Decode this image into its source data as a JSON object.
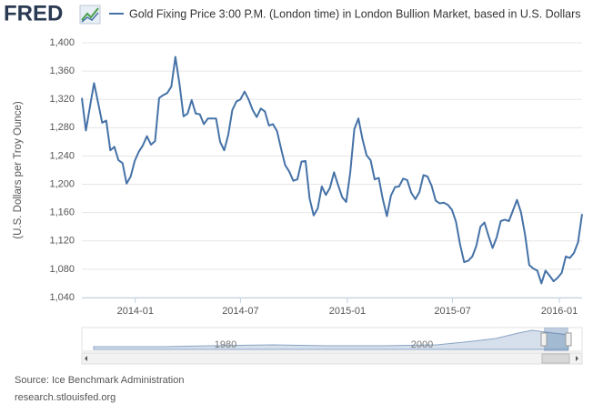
{
  "logo": "FRED",
  "chart_data": {
    "type": "line",
    "ylabel": "(U.S. Dollars per Troy Ounce)",
    "x": [
      "2013-10-01",
      "2013-10-08",
      "2013-10-15",
      "2013-10-22",
      "2013-10-29",
      "2013-11-05",
      "2013-11-12",
      "2013-11-19",
      "2013-11-26",
      "2013-12-03",
      "2013-12-10",
      "2013-12-17",
      "2013-12-24",
      "2013-12-31",
      "2014-01-07",
      "2014-01-14",
      "2014-01-21",
      "2014-01-28",
      "2014-02-04",
      "2014-02-11",
      "2014-02-18",
      "2014-02-25",
      "2014-03-04",
      "2014-03-11",
      "2014-03-18",
      "2014-03-25",
      "2014-04-01",
      "2014-04-08",
      "2014-04-15",
      "2014-04-22",
      "2014-04-29",
      "2014-05-06",
      "2014-05-13",
      "2014-05-20",
      "2014-05-27",
      "2014-06-03",
      "2014-06-10",
      "2014-06-17",
      "2014-06-24",
      "2014-07-01",
      "2014-07-08",
      "2014-07-15",
      "2014-07-22",
      "2014-07-29",
      "2014-08-05",
      "2014-08-12",
      "2014-08-19",
      "2014-08-26",
      "2014-09-02",
      "2014-09-09",
      "2014-09-16",
      "2014-09-23",
      "2014-09-30",
      "2014-10-07",
      "2014-10-14",
      "2014-10-21",
      "2014-10-28",
      "2014-11-04",
      "2014-11-11",
      "2014-11-18",
      "2014-11-25",
      "2014-12-02",
      "2014-12-09",
      "2014-12-16",
      "2014-12-23",
      "2014-12-30",
      "2015-01-06",
      "2015-01-13",
      "2015-01-20",
      "2015-01-27",
      "2015-02-03",
      "2015-02-10",
      "2015-02-17",
      "2015-02-24",
      "2015-03-03",
      "2015-03-10",
      "2015-03-17",
      "2015-03-24",
      "2015-03-31",
      "2015-04-07",
      "2015-04-14",
      "2015-04-21",
      "2015-04-28",
      "2015-05-05",
      "2015-05-12",
      "2015-05-19",
      "2015-05-26",
      "2015-06-02",
      "2015-06-09",
      "2015-06-16",
      "2015-06-23",
      "2015-06-30",
      "2015-07-07",
      "2015-07-14",
      "2015-07-21",
      "2015-07-28",
      "2015-08-04",
      "2015-08-11",
      "2015-08-18",
      "2015-08-25",
      "2015-09-01",
      "2015-09-08",
      "2015-09-15",
      "2015-09-22",
      "2015-09-29",
      "2015-10-06",
      "2015-10-13",
      "2015-10-20",
      "2015-10-27",
      "2015-11-03",
      "2015-11-10",
      "2015-11-17",
      "2015-11-24",
      "2015-12-01",
      "2015-12-08",
      "2015-12-15",
      "2015-12-22",
      "2015-12-29",
      "2016-01-05",
      "2016-01-12",
      "2016-01-19",
      "2016-01-26",
      "2016-02-02",
      "2016-02-09"
    ],
    "series": [
      {
        "name": "Gold Fixing Price 3:00 P.M. (London time) in London Bullion Market, based in U.S. Dollars",
        "color": "#4572a7",
        "values": [
          1322,
          1276,
          1310,
          1343,
          1315,
          1287,
          1290,
          1248,
          1253,
          1234,
          1230,
          1201,
          1211,
          1233,
          1246,
          1255,
          1268,
          1256,
          1261,
          1322,
          1326,
          1329,
          1338,
          1380,
          1342,
          1296,
          1300,
          1319,
          1300,
          1299,
          1285,
          1293,
          1293,
          1293,
          1260,
          1248,
          1270,
          1305,
          1317,
          1320,
          1331,
          1320,
          1305,
          1295,
          1307,
          1303,
          1283,
          1285,
          1275,
          1250,
          1227,
          1218,
          1205,
          1207,
          1232,
          1233,
          1180,
          1156,
          1166,
          1197,
          1185,
          1195,
          1217,
          1199,
          1182,
          1175,
          1217,
          1278,
          1293,
          1264,
          1241,
          1234,
          1207,
          1209,
          1179,
          1155,
          1184,
          1196,
          1197,
          1208,
          1206,
          1188,
          1179,
          1189,
          1213,
          1211,
          1198,
          1177,
          1173,
          1174,
          1171,
          1164,
          1147,
          1115,
          1090,
          1092,
          1098,
          1113,
          1140,
          1146,
          1127,
          1110,
          1125,
          1148,
          1150,
          1148,
          1163,
          1178,
          1160,
          1128,
          1086,
          1081,
          1078,
          1060,
          1078,
          1071,
          1063,
          1068,
          1075,
          1098,
          1096,
          1103,
          1118,
          1158
        ]
      }
    ],
    "xlim": [
      "2013-10-01",
      "2016-02-09"
    ],
    "xticks": [
      {
        "value": "2014-01-01",
        "label": "2014-01"
      },
      {
        "value": "2014-07-01",
        "label": "2014-07"
      },
      {
        "value": "2015-01-01",
        "label": "2015-01"
      },
      {
        "value": "2015-07-01",
        "label": "2015-07"
      },
      {
        "value": "2016-01-01",
        "label": "2016-01"
      }
    ],
    "ylim": [
      1040,
      1400
    ],
    "yticks": [
      {
        "value": 1040,
        "label": "1,040"
      },
      {
        "value": 1080,
        "label": "1,080"
      },
      {
        "value": 1120,
        "label": "1,120"
      },
      {
        "value": 1160,
        "label": "1,160"
      },
      {
        "value": 1200,
        "label": "1,200"
      },
      {
        "value": 1240,
        "label": "1,240"
      },
      {
        "value": 1280,
        "label": "1,280"
      },
      {
        "value": 1320,
        "label": "1,320"
      },
      {
        "value": 1360,
        "label": "1,360"
      },
      {
        "value": 1400,
        "label": "1,400"
      }
    ],
    "grid": true
  },
  "navigator": {
    "labels": [
      "1980",
      "2000"
    ]
  },
  "source": "Source: Ice Benchmark Administration",
  "url": "research.stlouisfed.org"
}
